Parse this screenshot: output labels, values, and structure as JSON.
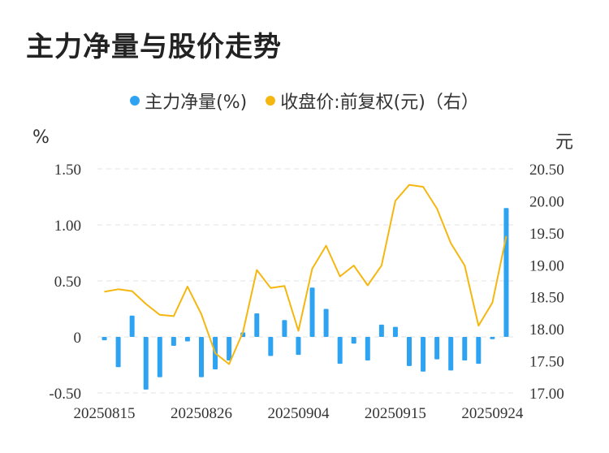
{
  "title": "主力净量与股价走势",
  "legend": {
    "bar_label": "主力净量(%)",
    "line_label": "收盘价:前复权(元)（右）"
  },
  "units": {
    "left": "%",
    "right": "元"
  },
  "colors": {
    "bar": "#2ea3f2",
    "line": "#f5b70f",
    "grid": "#e3e3e3"
  },
  "chart_data": {
    "type": "bar+line",
    "x_tick_labels": [
      "20250815",
      "20250826",
      "20250904",
      "20250915",
      "20250924"
    ],
    "x_tick_indices": [
      0,
      7,
      14,
      21,
      28
    ],
    "y_left": {
      "ticks": [
        "1.50",
        "1.00",
        "0.50",
        "0",
        "-0.50"
      ],
      "ylim": [
        -0.5,
        1.5
      ]
    },
    "y_right": {
      "ticks": [
        "20.50",
        "20.00",
        "19.50",
        "19.00",
        "18.50",
        "18.00",
        "17.50",
        "17.00"
      ],
      "ylim": [
        17.0,
        20.5
      ]
    },
    "series": [
      {
        "name": "主力净量(%)",
        "type": "bar",
        "axis": "left",
        "values": [
          -0.03,
          -0.27,
          0.19,
          -0.47,
          -0.36,
          -0.08,
          -0.04,
          -0.36,
          -0.29,
          -0.21,
          0.04,
          0.21,
          -0.17,
          0.15,
          -0.16,
          0.44,
          0.25,
          -0.24,
          -0.06,
          -0.21,
          0.11,
          0.09,
          -0.26,
          -0.31,
          -0.2,
          -0.3,
          -0.21,
          -0.24,
          -0.02,
          1.15
        ]
      },
      {
        "name": "收盘价:前复权(元)（右）",
        "type": "line",
        "axis": "right",
        "values": [
          18.58,
          18.62,
          18.59,
          18.39,
          18.22,
          18.2,
          18.66,
          18.23,
          17.62,
          17.45,
          17.95,
          18.92,
          18.64,
          18.67,
          17.97,
          18.94,
          19.3,
          18.82,
          18.99,
          18.68,
          18.99,
          20.0,
          20.25,
          20.22,
          19.88,
          19.34,
          18.99,
          18.05,
          18.41,
          19.45
        ]
      }
    ]
  }
}
